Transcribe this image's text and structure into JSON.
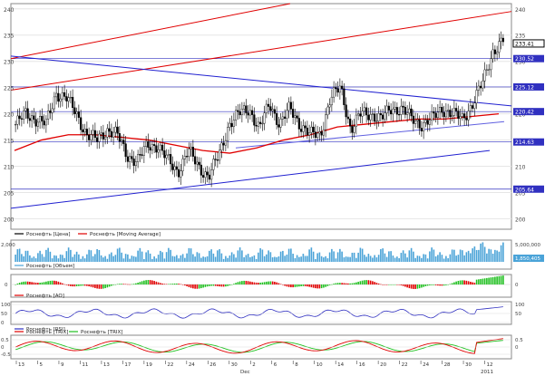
{
  "chart_data": [
    {
      "type": "candlestick",
      "panel": "price",
      "y_ticks": [
        "240",
        "235",
        "230",
        "225",
        "220",
        "215",
        "210",
        "205",
        "200"
      ],
      "ylim": [
        198,
        241
      ],
      "current_price_label": "233.41",
      "level_labels": [
        "230.52",
        "225.12",
        "220.42",
        "214.63",
        "205.64"
      ],
      "levels": [
        230.52,
        225.12,
        220.42,
        214.63,
        205.64
      ],
      "legend": [
        {
          "label": "Роснефть [Цена]",
          "color": "#000000"
        },
        {
          "label": "Роснефть [Moving Average]",
          "color": "#e00000"
        }
      ],
      "x_index": [
        0,
        6,
        12,
        18,
        24,
        30,
        36,
        42,
        48,
        54,
        60,
        66,
        72,
        78,
        84,
        90,
        96,
        102,
        108,
        114,
        120,
        126,
        132,
        138,
        144,
        150,
        156,
        162,
        168,
        174,
        180,
        186,
        192,
        198,
        204,
        212
      ],
      "close": [
        218,
        220,
        219,
        218,
        224,
        223,
        220,
        216,
        215,
        217,
        216,
        212,
        211,
        214,
        214,
        211,
        209,
        213,
        210,
        208,
        212,
        218,
        220,
        221,
        217,
        222,
        218,
        221,
        218,
        216,
        216,
        223,
        225,
        217,
        220,
        220
      ],
      "close_more": [
        219,
        221,
        221,
        219,
        218,
        219,
        221,
        220,
        219,
        222,
        226,
        232,
        234
      ],
      "moving_average": [
        213,
        215,
        216,
        216,
        215.5,
        215,
        214,
        213,
        212.5,
        213.5,
        215,
        216,
        217.5,
        218,
        218.5,
        219,
        219,
        219.5,
        220
      ]
    },
    {
      "type": "histogram",
      "panel": "volume",
      "legend": [
        {
          "label": "Роснефть [Объем]",
          "color": "#4aa3d8"
        }
      ],
      "y_tick_left": "2,000",
      "y_tick_right": "5,000,000",
      "last_value_label": "1,850,405"
    },
    {
      "type": "histogram",
      "panel": "oscillator",
      "legend": [
        {
          "label": "Роснефть [AO]",
          "color": "#e00000"
        }
      ],
      "y_tick_left": "0",
      "y_tick_right": "0"
    },
    {
      "type": "line",
      "panel": "rsi",
      "legend": [
        {
          "label": "Роснефть [RSI]",
          "color": "#3030c0"
        }
      ],
      "y_ticks_left": [
        "100",
        "50",
        "0"
      ],
      "y_ticks_right": [
        "100",
        "50"
      ]
    },
    {
      "type": "line",
      "panel": "trix",
      "legend": [
        {
          "label": "Роснефть [TRIX]",
          "color": "#e00000"
        },
        {
          "label": "Роснефть [TRIX]",
          "color": "#20c020"
        }
      ],
      "y_ticks_left": [
        "0.5",
        "0",
        "-0.5"
      ],
      "y_ticks_right": [
        "0.5",
        "0"
      ]
    }
  ],
  "x_axis": {
    "ticks": [
      "13",
      "5",
      "9",
      "11",
      "13",
      "17",
      "19",
      "22",
      "24",
      "26",
      "30",
      "2",
      "6",
      "8",
      "10",
      "14",
      "16",
      "20",
      "22",
      "24",
      "28",
      "30",
      "12"
    ],
    "months": [
      "Dec",
      "2011"
    ]
  }
}
